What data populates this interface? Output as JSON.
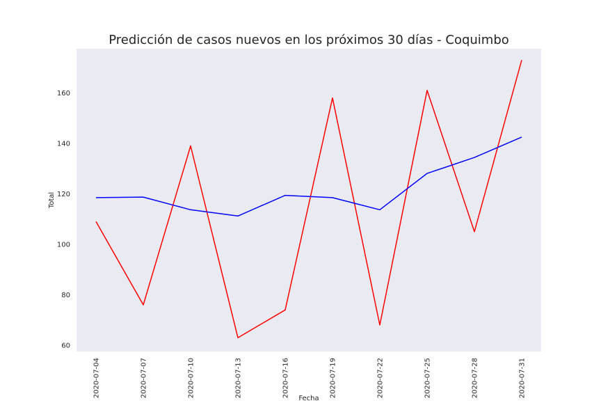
{
  "chart_data": {
    "type": "line",
    "title": "Predicción de casos nuevos en los próximos 30 días - Coquimbo",
    "xlabel": "Fecha",
    "ylabel": "Total",
    "x": [
      "2020-07-04",
      "2020-07-07",
      "2020-07-10",
      "2020-07-13",
      "2020-07-16",
      "2020-07-19",
      "2020-07-22",
      "2020-07-25",
      "2020-07-28",
      "2020-07-31"
    ],
    "yticks": [
      60,
      80,
      100,
      120,
      140,
      160
    ],
    "ylim": [
      57.5,
      177.5
    ],
    "grid": false,
    "background": "#eaeaf2",
    "series": [
      {
        "color": "#ff0000",
        "values": [
          109,
          76,
          139,
          63,
          74,
          158,
          68,
          161,
          105,
          173
        ]
      },
      {
        "color": "#0000ff",
        "values": [
          118.5,
          118.7,
          113.7,
          111.2,
          119.4,
          118.5,
          113.7,
          128.1,
          134.4,
          142.5
        ]
      }
    ]
  }
}
